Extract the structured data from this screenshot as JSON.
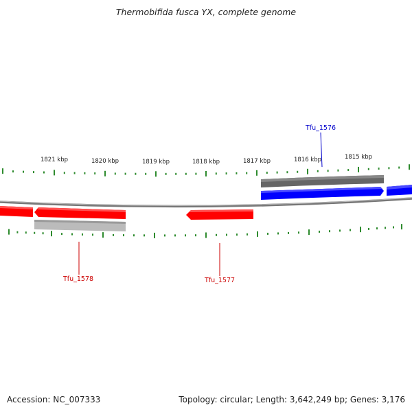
{
  "title": "Thermobifida fusca YX, complete genome",
  "accession": "Accession: NC_007333",
  "summary": "Topology: circular; Length: 3,642,249 bp; Genes: 3,176",
  "scale_labels": [
    "1821 kbp",
    "1820 kbp",
    "1819 kbp",
    "1818 kbp",
    "1817 kbp",
    "1816 kbp",
    "1815 kbp"
  ],
  "genes": [
    {
      "name": "Tfu_1576",
      "color": "#0000cc"
    },
    {
      "name": "Tfu_1577",
      "color": "#cc0000"
    },
    {
      "name": "Tfu_1578",
      "color": "#cc0000"
    }
  ],
  "colors": {
    "forward_cds": "#0000ff",
    "reverse_cds": "#ff0000",
    "forward_feature": "#666666",
    "reverse_feature": "#bbbbbb",
    "backbone": "#888888",
    "ticks": "#2e8b2e"
  }
}
